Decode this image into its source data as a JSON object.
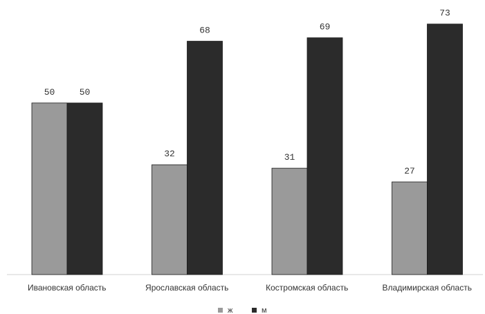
{
  "chart_data": {
    "type": "bar",
    "categories": [
      "Ивановская область",
      "Ярославская область",
      "Костромская область",
      "Владимирская область"
    ],
    "series": [
      {
        "name": "ж",
        "values": [
          50,
          32,
          31,
          27
        ],
        "color": "#9a9a9a"
      },
      {
        "name": "м",
        "values": [
          50,
          68,
          69,
          73
        ],
        "color": "#2b2b2b"
      }
    ],
    "ylim": [
      0,
      80
    ],
    "grid": false,
    "legend": "bottom-center"
  }
}
